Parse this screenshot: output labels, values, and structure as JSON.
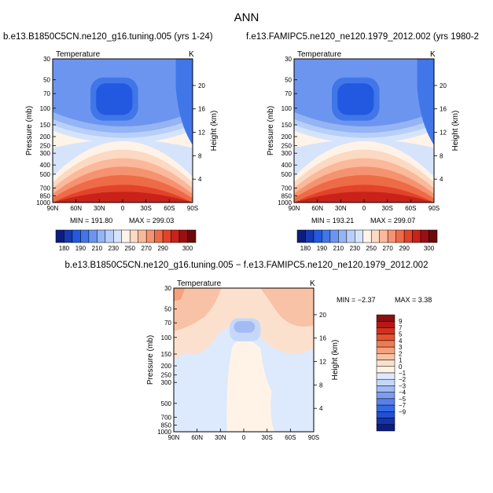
{
  "figure": {
    "title": "ANN"
  },
  "colors": {
    "abs_levels": [
      "#0d1d7e",
      "#153ab2",
      "#2259e0",
      "#4176e8",
      "#6c95ef",
      "#94b4f4",
      "#b8cff8",
      "#d6e4fb",
      "#fff3e8",
      "#fcd9c2",
      "#f9b99a",
      "#f59370",
      "#ee6b48",
      "#e24329",
      "#c8221a",
      "#9a0f12",
      "#6b0a0a"
    ],
    "diff_levels": [
      "#0d1d7e",
      "#1533a8",
      "#2150d4",
      "#3669e6",
      "#587fec",
      "#7c9cf0",
      "#a2bbf5",
      "#c6d8fa",
      "#dde9fc",
      "#fff3e8",
      "#fce0ce",
      "#f8c2a6",
      "#f4a17c",
      "#ee7b53",
      "#e4522f",
      "#d3301d",
      "#b71717",
      "#8c0f10"
    ]
  },
  "chart_data": [
    {
      "type": "heatmap",
      "title": "b.e13.B1850C5CN.ne120_g16.tuning.005 (yrs 1-24)",
      "subtitle": "Temperature",
      "units": "K",
      "xlabel": "",
      "ylabel": "Pressure (mb)",
      "y2label": "Height (km)",
      "x_ticks": [
        "90N",
        "60N",
        "30N",
        "0",
        "30S",
        "60S",
        "90S"
      ],
      "y_ticks": [
        "30",
        "50",
        "70",
        "100",
        "150",
        "200",
        "250",
        "300",
        "400",
        "500",
        "700",
        "850",
        "1000"
      ],
      "y2_ticks": [
        "20",
        "16",
        "12",
        "8",
        "4"
      ],
      "min_text": "MIN = 191.80",
      "max_text": "MAX = 299.03",
      "colorbar_labels": [
        "180",
        "190",
        "210",
        "230",
        "250",
        "270",
        "290",
        "300"
      ],
      "field": "absolute"
    },
    {
      "type": "heatmap",
      "title": "f.e13.FAMIPC5.ne120_ne120.1979_2012.002 (yrs 1980-2",
      "subtitle": "Temperature",
      "units": "K",
      "xlabel": "",
      "ylabel": "Pressure (mb)",
      "y2label": "Height (km)",
      "x_ticks": [
        "90N",
        "60N",
        "30N",
        "0",
        "30S",
        "60S",
        "90S"
      ],
      "y_ticks": [
        "30",
        "50",
        "70",
        "100",
        "150",
        "200",
        "250",
        "300",
        "400",
        "500",
        "700",
        "850",
        "1000"
      ],
      "y2_ticks": [
        "20",
        "16",
        "12",
        "8",
        "4"
      ],
      "min_text": "MIN = 193.21",
      "max_text": "MAX = 299.07",
      "colorbar_labels": [
        "180",
        "190",
        "210",
        "230",
        "250",
        "270",
        "290",
        "300"
      ],
      "field": "absolute"
    },
    {
      "type": "heatmap",
      "title": "b.e13.B1850C5CN.ne120_g16.tuning.005 − f.e13.FAMIPC5.ne120_ne120.1979_2012.002",
      "subtitle": "Temperature",
      "units": "K",
      "xlabel": "",
      "ylabel": "Pressure (mb)",
      "y2label": "Height (km)",
      "x_ticks": [
        "90N",
        "60N",
        "30N",
        "0",
        "30S",
        "60S",
        "90S"
      ],
      "y_ticks": [
        "30",
        "50",
        "70",
        "100",
        "150",
        "200",
        "250",
        "300",
        "500",
        "700",
        "850",
        "1000"
      ],
      "y2_ticks": [
        "20",
        "16",
        "12",
        "8",
        "4"
      ],
      "min_text": "MIN =  −2.37",
      "max_text": "MAX =   3.38",
      "colorbar_labels": [
        "9",
        "7",
        "5",
        "4",
        "3",
        "2",
        "1",
        "0",
        "−1",
        "−2",
        "−3",
        "−4",
        "−5",
        "−7",
        "−9"
      ],
      "field": "difference"
    }
  ]
}
